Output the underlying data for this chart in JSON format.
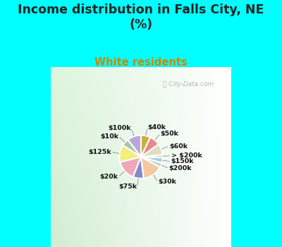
{
  "title": "Income distribution in Falls City, NE\n(%)",
  "subtitle": "White residents",
  "labels": [
    "$100k",
    "$10k",
    "$125k",
    "$20k",
    "$75k",
    "$30k",
    "$200k",
    "$150k",
    "> $200k",
    "$60k",
    "$50k",
    "$40k"
  ],
  "values": [
    10.5,
    5.5,
    13.0,
    15.0,
    8.0,
    15.0,
    3.5,
    4.0,
    2.0,
    8.5,
    8.0,
    7.0
  ],
  "colors": [
    "#b8a8d8",
    "#aac8a0",
    "#f0f07a",
    "#f0a8b8",
    "#8888cc",
    "#f5c8a0",
    "#c0d8d0",
    "#a8cce8",
    "#98d898",
    "#e0ddc0",
    "#e88888",
    "#c8b040"
  ],
  "bg_cyan": "#00ffff",
  "title_color": "#222222",
  "subtitle_color": "#cc8800",
  "label_color": "#111111",
  "wedge_edge": "#ffffff",
  "watermark_color": "#aaaaaa"
}
